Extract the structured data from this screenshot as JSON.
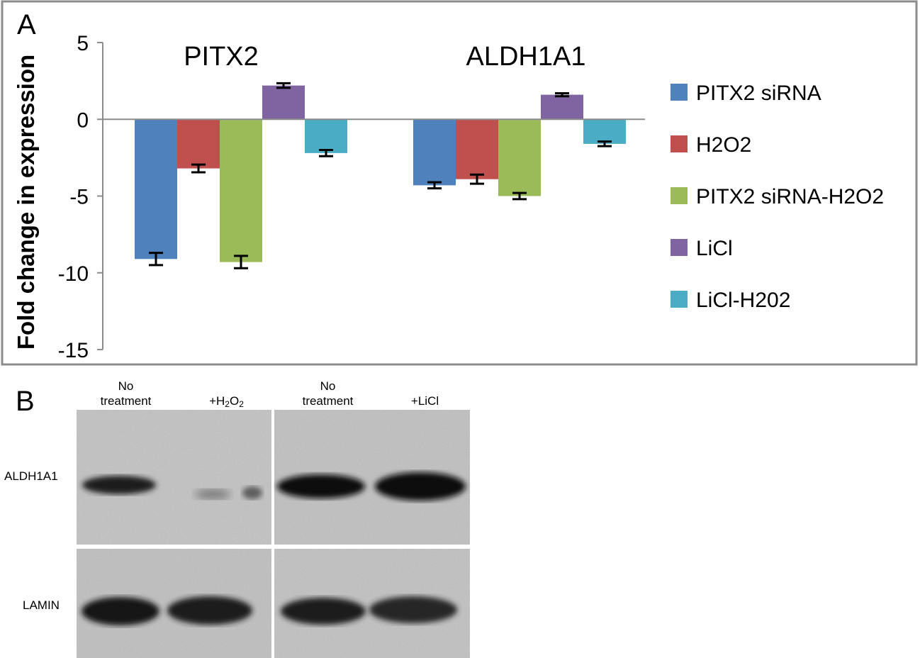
{
  "panel_a": {
    "letter": "A"
  },
  "panel_b": {
    "letter": "B",
    "lanes": [
      "No treatment",
      "+H2O2",
      "No treatment",
      "+LiCl"
    ],
    "lane_no_treatment_line1": "No",
    "lane_no_treatment_line2": "treatment",
    "lane_h2o2_prefix": "+H",
    "lane_h2o2_2a": "2",
    "lane_h2o2_o": "O",
    "lane_h2o2_2b": "2",
    "lane_licl": "+LiCl",
    "rows": [
      "ALDH1A1",
      "LAMIN"
    ]
  },
  "chart_data": {
    "type": "bar",
    "categories": [
      "PITX2",
      "ALDH1A1"
    ],
    "series": [
      {
        "name": "PITX2 siRNA",
        "color": "#4f81bd",
        "values": [
          -9.1,
          -4.3
        ],
        "errors": [
          0.4,
          0.2
        ]
      },
      {
        "name": "H2O2",
        "color": "#c0504d",
        "values": [
          -3.2,
          -3.9
        ],
        "errors": [
          0.25,
          0.3
        ]
      },
      {
        "name": "PITX2 siRNA-H2O2",
        "color": "#9bbb59",
        "values": [
          -9.3,
          -5.0
        ],
        "errors": [
          0.4,
          0.2
        ]
      },
      {
        "name": "LiCl",
        "color": "#8064a2",
        "values": [
          2.2,
          1.6
        ],
        "errors": [
          0.15,
          0.1
        ]
      },
      {
        "name": "LiCl-H202",
        "color": "#4bacc6",
        "values": [
          -2.2,
          -1.6
        ],
        "errors": [
          0.2,
          0.15
        ]
      }
    ],
    "ylabel": "Fold change in expression",
    "ylim": [
      -15,
      5
    ],
    "yticks": [
      "5",
      "0",
      "-5",
      "-10",
      "-15"
    ],
    "grid": false,
    "legend_position": "right"
  }
}
